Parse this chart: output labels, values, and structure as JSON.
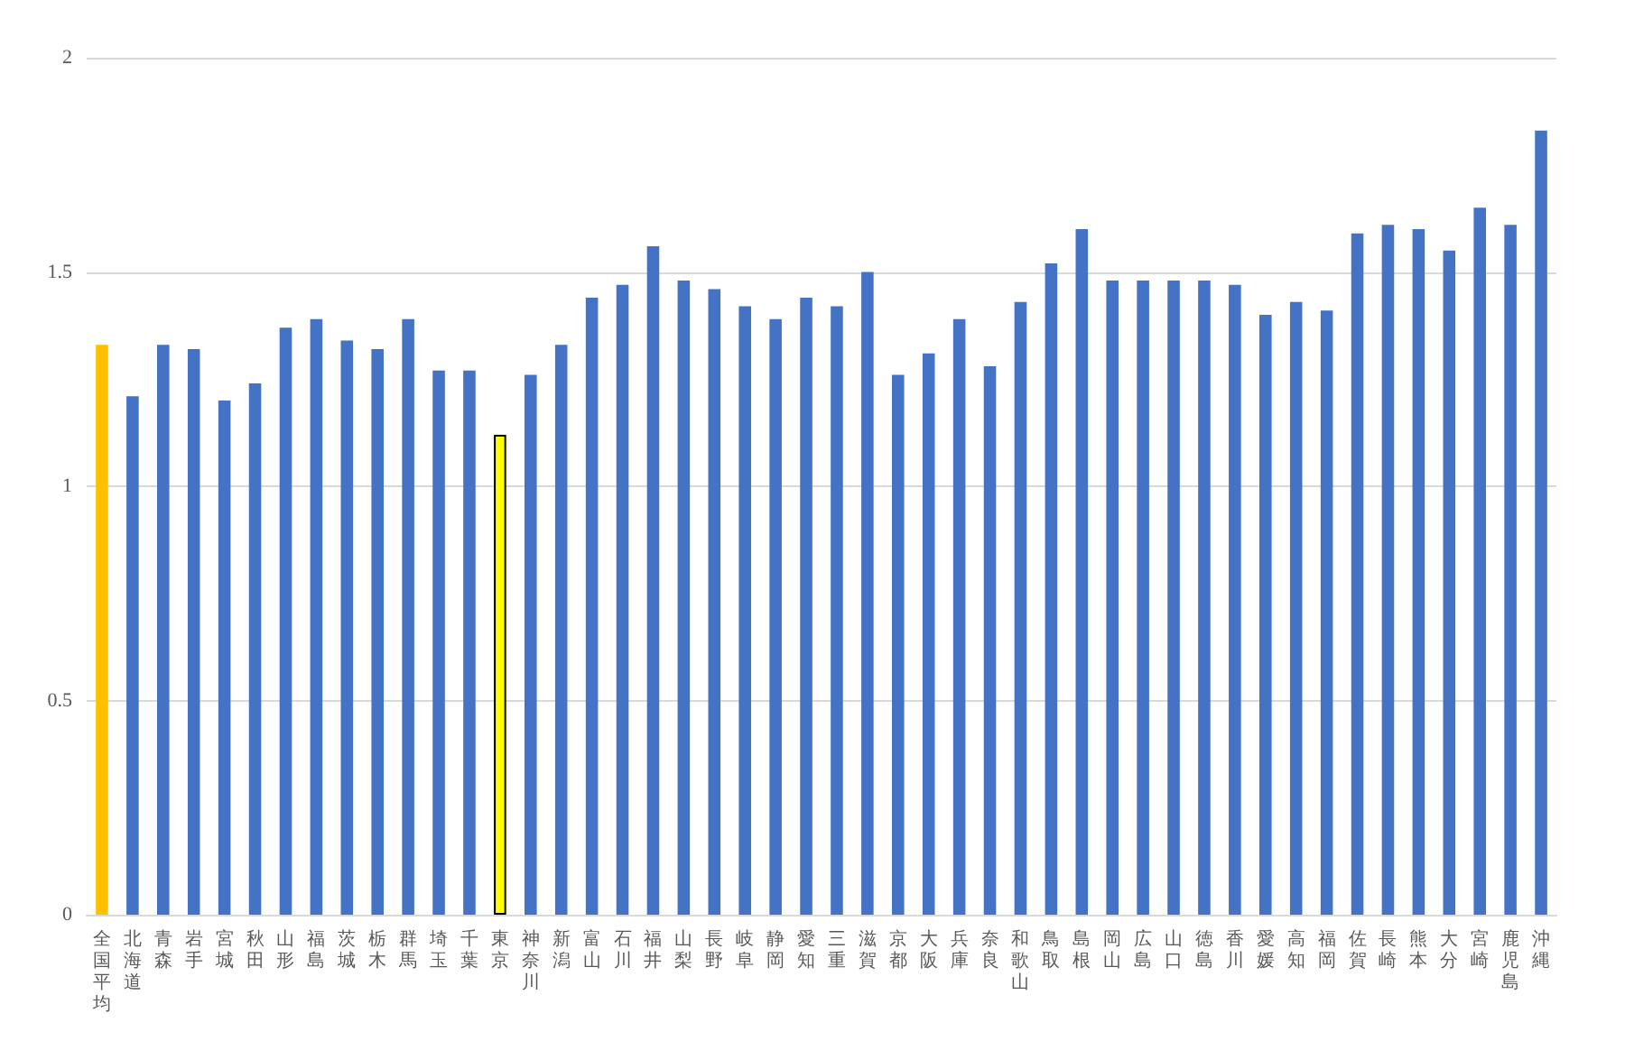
{
  "chart_data": {
    "type": "bar",
    "categories": [
      "全国平均",
      "北海道",
      "青森",
      "岩手",
      "宮城",
      "秋田",
      "山形",
      "福島",
      "茨城",
      "栃木",
      "群馬",
      "埼玉",
      "千葉",
      "東京",
      "神奈川",
      "新潟",
      "富山",
      "石川",
      "福井",
      "山梨",
      "長野",
      "岐阜",
      "静岡",
      "愛知",
      "三重",
      "滋賀",
      "京都",
      "大阪",
      "兵庫",
      "奈良",
      "和歌山",
      "鳥取",
      "島根",
      "岡山",
      "広島",
      "山口",
      "徳島",
      "香川",
      "愛媛",
      "高知",
      "福岡",
      "佐賀",
      "長崎",
      "熊本",
      "大分",
      "宮崎",
      "鹿児島",
      "沖縄"
    ],
    "values": [
      1.33,
      1.21,
      1.33,
      1.32,
      1.2,
      1.24,
      1.37,
      1.39,
      1.34,
      1.32,
      1.39,
      1.27,
      1.27,
      1.12,
      1.26,
      1.33,
      1.44,
      1.47,
      1.56,
      1.48,
      1.46,
      1.42,
      1.39,
      1.44,
      1.42,
      1.5,
      1.26,
      1.31,
      1.39,
      1.28,
      1.43,
      1.52,
      1.6,
      1.48,
      1.48,
      1.48,
      1.48,
      1.47,
      1.4,
      1.43,
      1.41,
      1.59,
      1.61,
      1.6,
      1.55,
      1.65,
      1.61,
      1.83
    ],
    "colors": [
      "#ffc000",
      "#4472c4",
      "#4472c4",
      "#4472c4",
      "#4472c4",
      "#4472c4",
      "#4472c4",
      "#4472c4",
      "#4472c4",
      "#4472c4",
      "#4472c4",
      "#4472c4",
      "#4472c4",
      "#ffff00",
      "#4472c4",
      "#4472c4",
      "#4472c4",
      "#4472c4",
      "#4472c4",
      "#4472c4",
      "#4472c4",
      "#4472c4",
      "#4472c4",
      "#4472c4",
      "#4472c4",
      "#4472c4",
      "#4472c4",
      "#4472c4",
      "#4472c4",
      "#4472c4",
      "#4472c4",
      "#4472c4",
      "#4472c4",
      "#4472c4",
      "#4472c4",
      "#4472c4",
      "#4472c4",
      "#4472c4",
      "#4472c4",
      "#4472c4",
      "#4472c4",
      "#4472c4",
      "#4472c4",
      "#4472c4",
      "#4472c4",
      "#4472c4",
      "#4472c4",
      "#4472c4"
    ],
    "ylim": [
      0,
      2
    ],
    "yticks": [
      0,
      0.5,
      1,
      1.5,
      2
    ],
    "grid": "y"
  }
}
